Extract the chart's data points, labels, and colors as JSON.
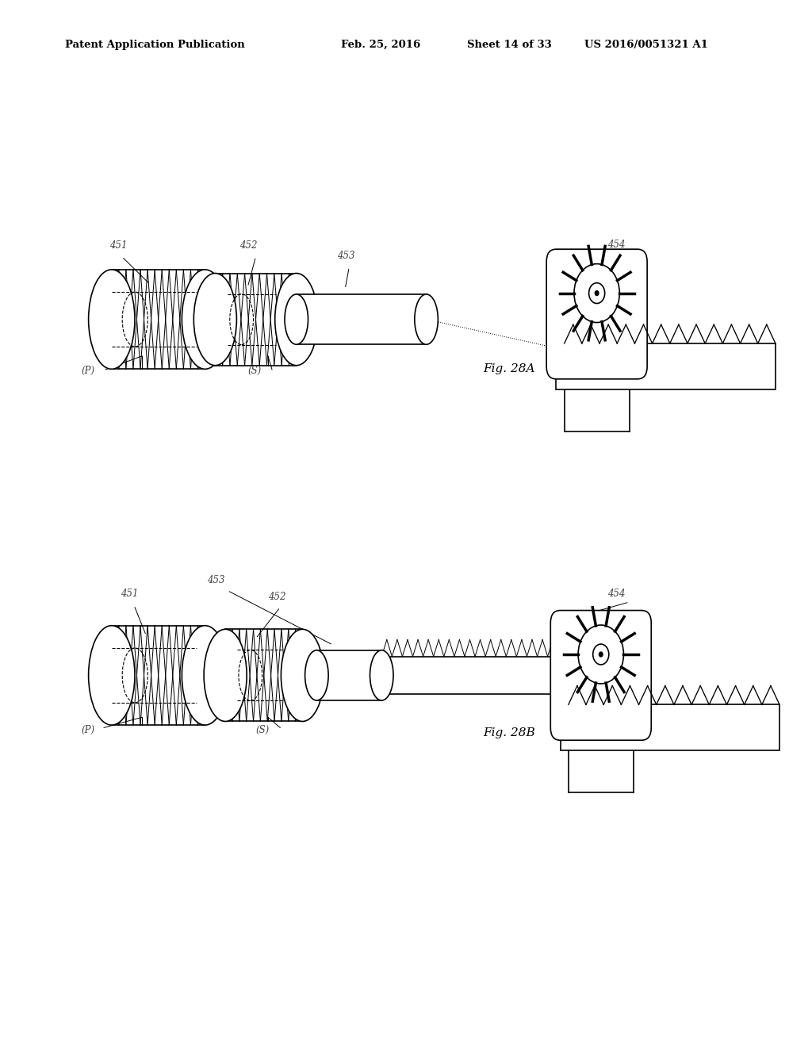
{
  "background_color": "#ffffff",
  "header_text": "Patent Application Publication",
  "header_date": "Feb. 25, 2016",
  "header_sheet": "Sheet 14 of 33",
  "header_patent": "US 2016/0051321 A1",
  "fig_a_label": "Fig. 28A",
  "fig_b_label": "Fig. 28B",
  "line_color": "#000000",
  "label_color": "#404040"
}
